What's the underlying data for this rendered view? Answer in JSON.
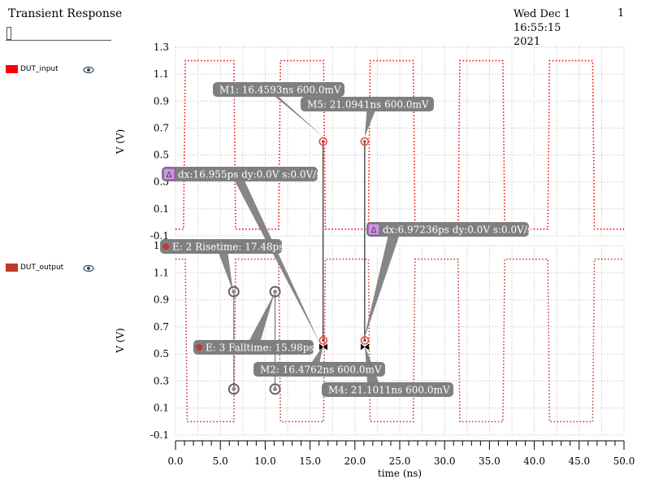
{
  "header": {
    "title": "Transient Response",
    "date_line1": "Wed Dec 1 16:55:15",
    "date_line2": "2021",
    "page": "1"
  },
  "legend": [
    {
      "name": "DUT_input",
      "color": "#ff0000",
      "icon": "eye-icon"
    },
    {
      "name": "DUT_output",
      "color": "#c0392b",
      "icon": "eye-icon"
    }
  ],
  "chart_data": [
    {
      "type": "line",
      "series": [
        {
          "name": "DUT_input",
          "color": "#ff0000",
          "line_style": "dotted",
          "x": [
            0,
            0.9,
            1.1,
            6.5,
            6.7,
            11.5,
            11.7,
            16.5,
            16.7,
            21.5,
            21.7,
            26.5,
            26.7,
            31.5,
            31.7,
            36.5,
            36.7,
            41.5,
            41.7,
            46.5,
            46.7,
            50
          ],
          "y": [
            -0.05,
            -0.05,
            1.2,
            1.2,
            -0.05,
            -0.05,
            1.2,
            1.2,
            -0.05,
            -0.05,
            1.2,
            1.2,
            -0.05,
            -0.05,
            1.2,
            1.2,
            -0.05,
            -0.05,
            1.2,
            1.2,
            -0.05,
            -0.05
          ]
        }
      ],
      "ylabel": "V (V)",
      "yticks": [
        "-0.1",
        "0.1",
        "0.3",
        "0.5",
        "0.7",
        "0.9",
        "1.1",
        "1.3"
      ],
      "ylim": [
        -0.1,
        1.3
      ],
      "xlim": [
        0,
        50
      ],
      "grid": true,
      "markers": [
        {
          "x": 16.4593,
          "y": 0.6,
          "label": "M1: 16.4593ns 600.0mV"
        },
        {
          "x": 21.0941,
          "y": 0.6,
          "label": "M5: 21.0941ns 600.0mV"
        }
      ],
      "delta_labels": [
        "dx:16.955ps dy:0.0V s:0.0V/s",
        "dx:6.97236ps dy:0.0V s:0.0V/s"
      ]
    },
    {
      "type": "line",
      "series": [
        {
          "name": "DUT_output",
          "color": "#c0392b",
          "line_style": "dotted",
          "x": [
            0,
            1.1,
            1.3,
            6.5,
            6.7,
            11.5,
            11.7,
            16.5,
            16.7,
            21.5,
            21.7,
            26.5,
            26.7,
            31.5,
            31.7,
            36.5,
            36.7,
            41.5,
            41.7,
            46.5,
            46.7,
            50
          ],
          "y": [
            1.2,
            1.2,
            0,
            0,
            1.2,
            1.2,
            0,
            0,
            1.2,
            1.2,
            0,
            0,
            1.2,
            1.2,
            0,
            0,
            1.2,
            1.2,
            0,
            0,
            1.2,
            1.2
          ]
        }
      ],
      "ylabel": "V (V)",
      "yticks": [
        "-0.1",
        "0.1",
        "0.3",
        "0.5",
        "0.7",
        "0.9",
        "1.1",
        "1.3"
      ],
      "ylim": [
        -0.1,
        1.3
      ],
      "xlabel": "time (ns)",
      "xticks": [
        "0.0",
        "5.0",
        "10.0",
        "15.0",
        "20.0",
        "25.0",
        "30.0",
        "35.0",
        "40.0",
        "45.0",
        "50.0"
      ],
      "xlim": [
        0,
        50
      ],
      "grid": true,
      "markers": [
        {
          "x": 16.4762,
          "y": 0.6,
          "label": "M2: 16.4762ns 600.0mV"
        },
        {
          "x": 21.1011,
          "y": 0.6,
          "label": "M4: 21.1011ns 600.0mV"
        }
      ],
      "measurements": [
        {
          "label": "E: 2 Risetime: 17.48ps",
          "x": 6.5,
          "y_low": 0.24,
          "y_high": 0.96
        },
        {
          "label": "E: 3 Falltime: 15.98ps",
          "x": 11.1,
          "y_low": 0.24,
          "y_high": 0.96
        }
      ]
    }
  ]
}
